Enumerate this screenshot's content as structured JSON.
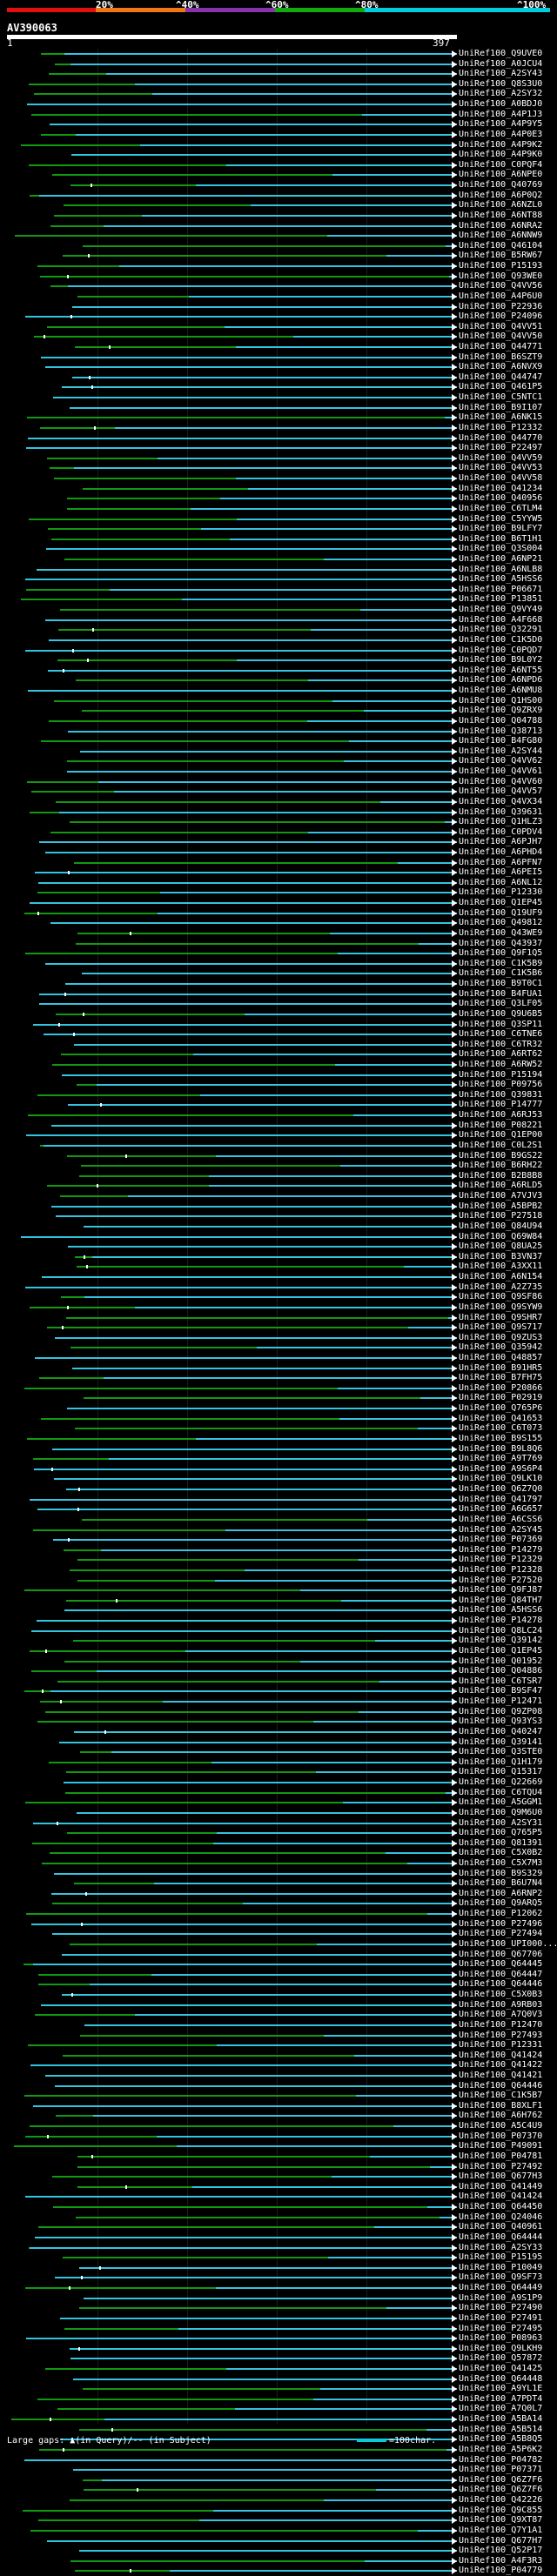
{
  "scale": {
    "labels": [
      "20%",
      "^40%",
      "^60%",
      "^80%",
      "^100%"
    ],
    "colors": [
      "#e01010",
      "#ee7711",
      "#8833aa",
      "#11aa11",
      "#00ccdd"
    ]
  },
  "query": {
    "id": "AV390063",
    "start": "1",
    "end": "397"
  },
  "colors": {
    "cyan": "#33c4e0",
    "green": "#119911",
    "dark_green": "#0b5f0b"
  },
  "hits": [
    "UniRef100_Q9UVE0",
    "UniRef100_A0JCU4",
    "UniRef100_A2SY43",
    "UniRef100_Q8S3U0",
    "UniRef100_A2SY32",
    "UniRef100_A0BDJ0",
    "UniRef100_A4P1J3",
    "UniRef100_A4P9Y5",
    "UniRef100_A4P0E3",
    "UniRef100_A4P9K2",
    "UniRef100_A4P9K0",
    "UniRef100_C0PQF4",
    "UniRef100_A6NPE0",
    "UniRef100_Q40769",
    "UniRef100_A6P0Q2",
    "UniRef100_A6NZL0",
    "UniRef100_A6NT88",
    "UniRef100_A6NRA2",
    "UniRef100_A6NNW9",
    "UniRef100_Q46104",
    "UniRef100_B5RW67",
    "UniRef100_P15193",
    "UniRef100_Q93WE0",
    "UniRef100_Q4VV56",
    "UniRef100_A4P6U0",
    "UniRef100_P22936",
    "UniRef100_P24096",
    "UniRef100_Q4VV51",
    "UniRef100_Q4VV50",
    "UniRef100_Q44771",
    "UniRef100_B6SZT9",
    "UniRef100_A6NVX9",
    "UniRef100_Q44747",
    "UniRef100_Q461P5",
    "UniRef100_C5NTC1",
    "UniRef100_B9I107",
    "UniRef100_A6NK15",
    "UniRef100_P12332",
    "UniRef100_Q44770",
    "UniRef100_P22497",
    "UniRef100_Q4VV59",
    "UniRef100_Q4VV53",
    "UniRef100_Q4VV58",
    "UniRef100_Q41234",
    "UniRef100_Q40956",
    "UniRef100_C6TLM4",
    "UniRef100_C5YYW5",
    "UniRef100_B9LFY7",
    "UniRef100_B6T1H1",
    "UniRef100_Q3S004",
    "UniRef100_A6NP21",
    "UniRef100_A6NLB8",
    "UniRef100_A5HSS6",
    "UniRef100_P06671",
    "UniRef100_P13851",
    "UniRef100_Q9VY49",
    "UniRef100_A4F668",
    "UniRef100_Q32291",
    "UniRef100_C1K5D0",
    "UniRef100_C0PQD7",
    "UniRef100_B9L0Y2",
    "UniRef100_A6NT55",
    "UniRef100_A6NPD6",
    "UniRef100_A6NMU8",
    "UniRef100_Q1HS00",
    "UniRef100_Q9ZRX9",
    "UniRef100_Q04788",
    "UniRef100_Q38713",
    "UniRef100_B4FG80",
    "UniRef100_A2SY44",
    "UniRef100_Q4VV62",
    "UniRef100_Q4VV61",
    "UniRef100_Q4VV60",
    "UniRef100_Q4VV57",
    "UniRef100_Q4VX34",
    "UniRef100_Q39631",
    "UniRef100_Q1HLZ3",
    "UniRef100_C0PDV4",
    "UniRef100_A6PJH7",
    "UniRef100_A6PHD4",
    "UniRef100_A6PFN7",
    "UniRef100_A6PEI5",
    "UniRef100_A6NL12",
    "UniRef100_P12330",
    "UniRef100_Q1EP45",
    "UniRef100_Q19UF9",
    "UniRef100_Q49812",
    "UniRef100_Q43WE9",
    "UniRef100_Q43937",
    "UniRef100_Q9F1Q5",
    "UniRef100_C1K5B9",
    "UniRef100_C1K5B6",
    "UniRef100_B9T0C1",
    "UniRef100_B4FUA1",
    "UniRef100_Q3LF05",
    "UniRef100_Q9U6B5",
    "UniRef100_Q3SP11",
    "UniRef100_C6TNE6",
    "UniRef100_C6TR32",
    "UniRef100_A6RT62",
    "UniRef100_A6RW52",
    "UniRef100_P15194",
    "UniRef100_P09756",
    "UniRef100_Q39831",
    "UniRef100_P14777",
    "UniRef100_A6RJ53",
    "UniRef100_P08221",
    "UniRef100_Q1EP00",
    "UniRef100_C0L2S1",
    "UniRef100_B9GS22",
    "UniRef100_B6RH22",
    "UniRef100_B2B8B8",
    "UniRef100_A6RLD5",
    "UniRef100_A7VJV3",
    "UniRef100_A5BPB2",
    "UniRef100_P27518",
    "UniRef100_Q84U94",
    "UniRef100_Q69W84",
    "UniRef100_Q8UA25",
    "UniRef100_B3VN37",
    "UniRef100_A3XX11",
    "UniRef100_A6N154",
    "UniRef100_A2Z735",
    "UniRef100_Q9SF86",
    "UniRef100_Q9SYW9",
    "UniRef100_Q9SHR7",
    "UniRef100_Q9S717",
    "UniRef100_Q9ZUS3",
    "UniRef100_Q35942",
    "UniRef100_Q48857",
    "UniRef100_B91HR5",
    "UniRef100_B7FH75",
    "UniRef100_P20866",
    "UniRef100_P02919",
    "UniRef100_Q765P6",
    "UniRef100_Q41653",
    "UniRef100_C6T073",
    "UniRef100_B9S155",
    "UniRef100_B9L8Q6",
    "UniRef100_A9T769",
    "UniRef100_A9S6P4",
    "UniRef100_Q9LK10",
    "UniRef100_Q6Z7Q0",
    "UniRef100_Q41797",
    "UniRef100_A6G657",
    "UniRef100_A6CSS6",
    "UniRef100_A2SY45",
    "UniRef100_P07369",
    "UniRef100_P14279",
    "UniRef100_P12329",
    "UniRef100_P12328",
    "UniRef100_P27520",
    "UniRef100_Q9FJ87",
    "UniRef100_Q84TH7",
    "UniRef100_A5HSS6",
    "UniRef100_P14278",
    "UniRef100_Q8LC24",
    "UniRef100_Q39142",
    "UniRef100_Q1EP45",
    "UniRef100_Q01952",
    "UniRef100_Q04886",
    "UniRef100_C6TSR7",
    "UniRef100_B9SF47",
    "UniRef100_P12471",
    "UniRef100_Q9ZP08",
    "UniRef100_Q93YS3",
    "UniRef100_Q40247",
    "UniRef100_Q39141",
    "UniRef100_Q3STE0",
    "UniRef100_Q1H179",
    "UniRef100_Q15317",
    "UniRef100_Q22669",
    "UniRef100_C6TQU4",
    "UniRef100_A5GGM1",
    "UniRef100_Q9M6U0",
    "UniRef100_A2SY31",
    "UniRef100_Q765P5",
    "UniRef100_Q81391",
    "UniRef100_C5X0B2",
    "UniRef100_C5X7M3",
    "UniRef100_B9S329",
    "UniRef100_B6U7N4",
    "UniRef100_A6RNP2",
    "UniRef100_Q9ARQ5",
    "UniRef100_P12062",
    "UniRef100_P27496",
    "UniRef100_P27494",
    "UniRef100_UPI000...",
    "UniRef100_Q67706",
    "UniRef100_Q64445",
    "UniRef100_Q64447",
    "UniRef100_Q64446",
    "UniRef100_C5X0B3",
    "UniRef100_A9RB03",
    "UniRef100_A7Q0V3",
    "UniRef100_P12470",
    "UniRef100_P27493",
    "UniRef100_P12331",
    "UniRef100_Q41424",
    "UniRef100_Q41422",
    "UniRef100_Q41421",
    "UniRef100_Q64446",
    "UniRef100_C1K5B7",
    "UniRef100_B8XLF1",
    "UniRef100_A6H762",
    "UniRef100_A5C4U9",
    "UniRef100_P07370",
    "UniRef100_P49091",
    "UniRef100_P04781",
    "UniRef100_P27492",
    "UniRef100_Q677H3",
    "UniRef100_Q41449",
    "UniRef100_Q41424",
    "UniRef100_Q64450",
    "UniRef100_Q24046",
    "UniRef100_Q40961",
    "UniRef100_Q64444",
    "UniRef100_A2SY33",
    "UniRef100_P15195",
    "UniRef100_P10049",
    "UniRef100_Q9SF73",
    "UniRef100_Q64449",
    "UniRef100_A9S1P9",
    "UniRef100_P27490",
    "UniRef100_P27491",
    "UniRef100_P27495",
    "UniRef100_P08963",
    "UniRef100_Q9LKH9",
    "UniRef100_Q57872",
    "UniRef100_Q41425",
    "UniRef100_Q64448",
    "UniRef100_A9YL1E",
    "UniRef100_A7PDT4",
    "UniRef100_A7Q0L7",
    "UniRef100_A5BA14",
    "UniRef100_A5B514",
    "UniRef100_A5B8Q5",
    "UniRef100_A5P6K2",
    "UniRef100_P04782",
    "UniRef100_P07371",
    "UniRef100_Q6Z7F6",
    "UniRef100_Q6Z7F6",
    "UniRef100_Q42226",
    "UniRef100_Q9C855",
    "UniRef100_Q9XT87",
    "UniRef100_Q7Y1A1",
    "UniRef100_Q677H7",
    "UniRef100_Q52P17",
    "UniRef100_A4F3R3",
    "UniRef100_P04779"
  ],
  "legend": {
    "text": "Large gaps: ▲(in Query)/-- (in Subject)",
    "scale_text": "=100char."
  }
}
